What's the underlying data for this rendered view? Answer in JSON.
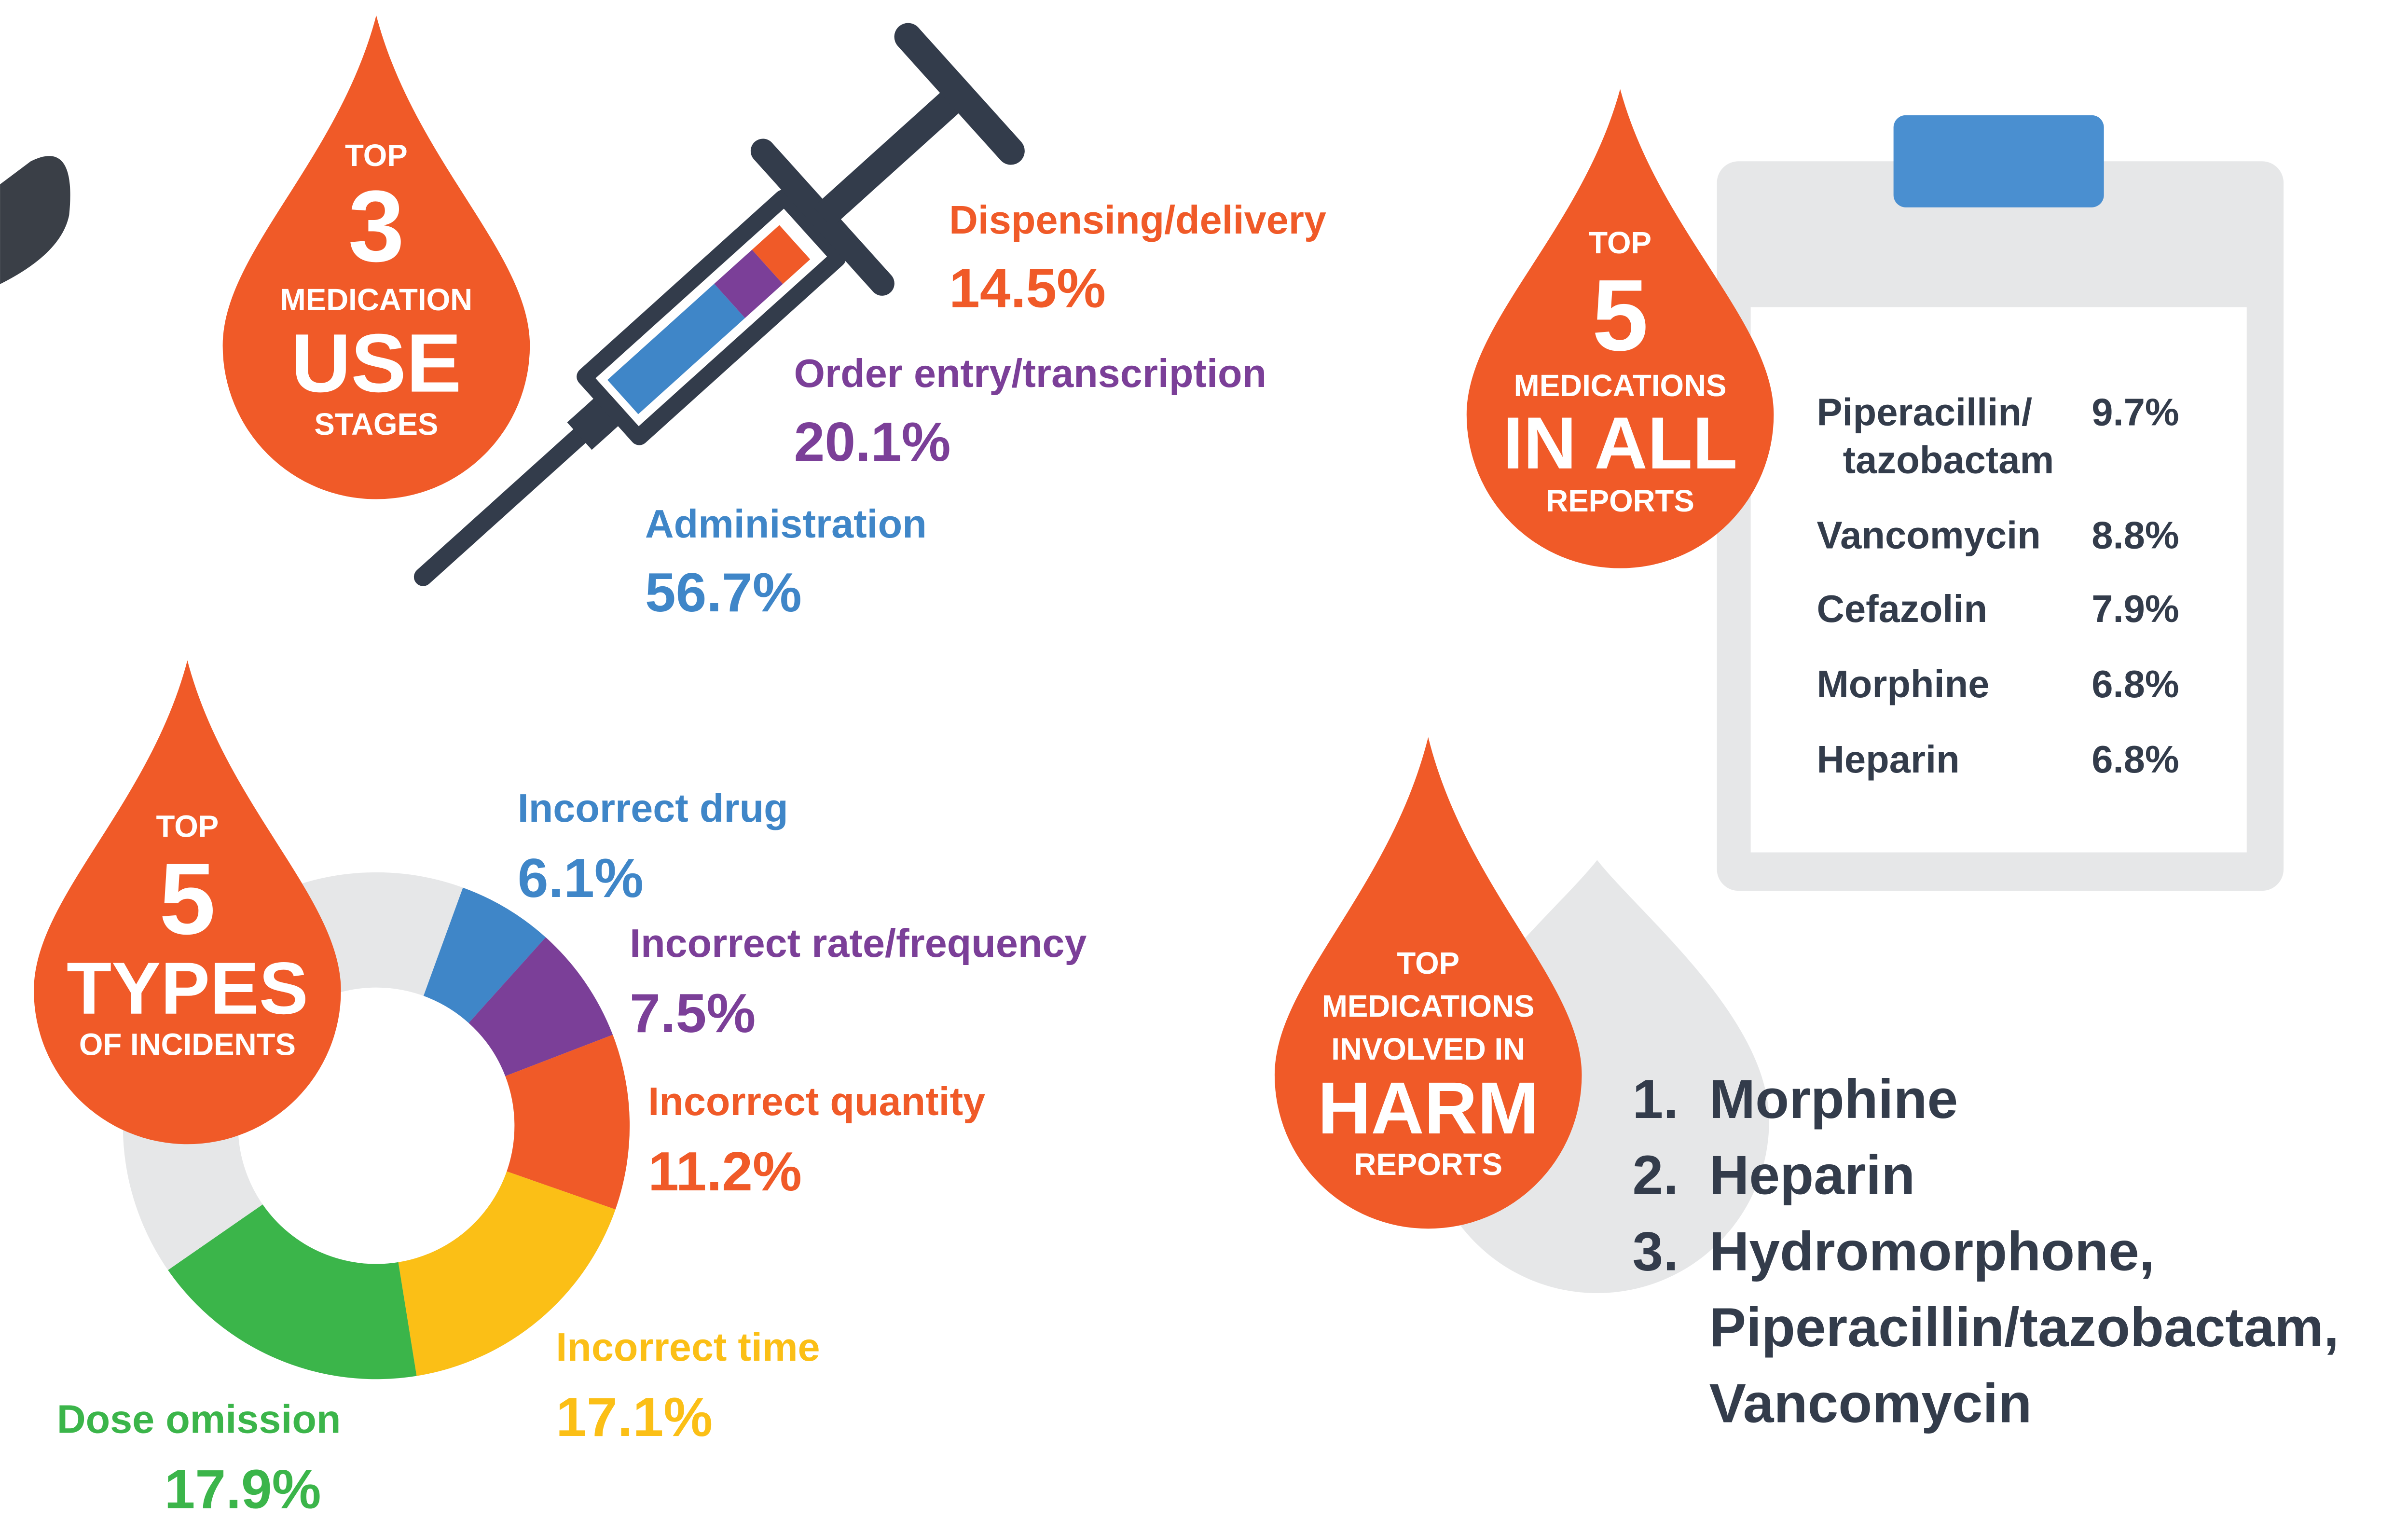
{
  "stages": {
    "badge": [
      "TOP",
      "3",
      "MEDICATION",
      "USE",
      "STAGES"
    ],
    "items": [
      {
        "label": "Dispensing/delivery",
        "value": 14.5,
        "value_label": "14.5%",
        "color": "#f05a28"
      },
      {
        "label": "Order entry/transcription",
        "value": 20.1,
        "value_label": "20.1%",
        "color": "#7b3f98"
      },
      {
        "label": "Administration",
        "value": 56.7,
        "value_label": "56.7%",
        "color": "#3f86c8"
      }
    ]
  },
  "chart_data": {
    "type": "donut",
    "badge": [
      "TOP",
      "5",
      "TYPES",
      "OF INCIDENTS"
    ],
    "categories": [
      "Incorrect drug",
      "Incorrect rate/frequency",
      "Incorrect quantity",
      "Incorrect time",
      "Dose omission"
    ],
    "values": [
      6.1,
      7.5,
      11.2,
      17.1,
      17.9
    ],
    "value_labels": [
      "6.1%",
      "7.5%",
      "11.2%",
      "17.1%",
      "17.9%"
    ],
    "colors": [
      "#3f86c8",
      "#7b3f98",
      "#f05a28",
      "#fbbf16",
      "#3bb54a"
    ]
  },
  "reports": {
    "badge": [
      "TOP",
      "5",
      "MEDICATIONS",
      "IN ALL",
      "REPORTS"
    ],
    "rows": [
      {
        "name": [
          "Piperacillin/",
          "tazobactam"
        ],
        "value": "9.7%"
      },
      {
        "name": [
          "Vancomycin"
        ],
        "value": "8.8%"
      },
      {
        "name": [
          "Cefazolin"
        ],
        "value": "7.9%"
      },
      {
        "name": [
          "Morphine"
        ],
        "value": "6.8%"
      },
      {
        "name": [
          "Heparin"
        ],
        "value": "6.8%"
      }
    ]
  },
  "harm": {
    "badge": [
      "TOP",
      "MEDICATIONS",
      "INVOLVED IN",
      "HARM",
      "REPORTS"
    ],
    "list": [
      {
        "marker": "1.",
        "lines": [
          "Morphine"
        ]
      },
      {
        "marker": "2.",
        "lines": [
          "Heparin"
        ]
      },
      {
        "marker": "3.",
        "lines": [
          "Hydromorphone,",
          "Piperacillin/tazobactam,",
          "Vancomycin"
        ]
      }
    ]
  }
}
